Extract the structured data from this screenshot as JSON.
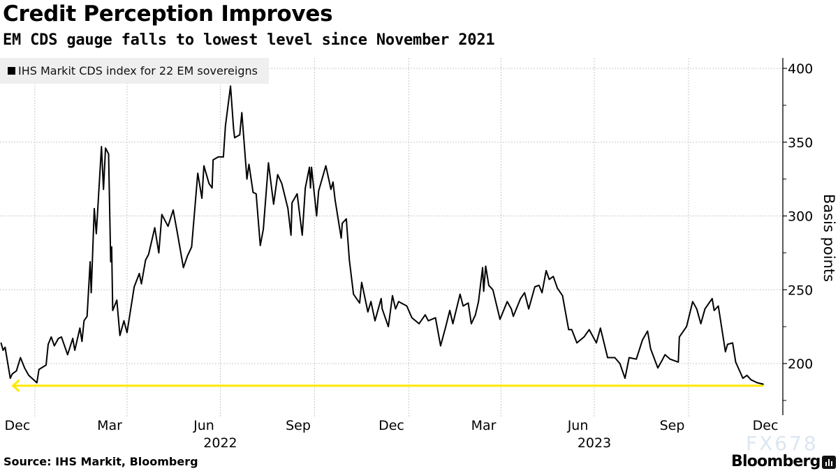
{
  "title": "Credit Perception Improves",
  "subtitle": "EM CDS gauge falls to lowest level since November 2021",
  "source": "Source: IHS Markit, Bloomberg",
  "brand": "Bloomberg",
  "watermark": "FX678",
  "chart_data": {
    "type": "line",
    "title": "Credit Perception Improves",
    "subtitle": "EM CDS gauge falls to lowest level since November 2021",
    "ylabel": "Basis points",
    "xlabel": "",
    "y_axis_position": "right",
    "ylim": [
      172,
      408
    ],
    "xlim": [
      "2021-11-28",
      "2024-01-01"
    ],
    "yticks": [
      200,
      250,
      300,
      350,
      400
    ],
    "ytick_labels": [
      "200",
      "250",
      "300",
      "350",
      "400"
    ],
    "xtick_labels": [
      {
        "label": "Dec",
        "date": "2021-12-15"
      },
      {
        "label": "Mar",
        "date": "2022-03-15"
      },
      {
        "label": "Jun",
        "date": "2022-06-15"
      },
      {
        "label": "Sep",
        "date": "2022-09-15"
      },
      {
        "label": "Dec",
        "date": "2022-12-15"
      },
      {
        "label": "Mar",
        "date": "2023-03-15"
      },
      {
        "label": "Jun",
        "date": "2023-06-15"
      },
      {
        "label": "Sep",
        "date": "2023-09-15"
      },
      {
        "label": "Dec",
        "date": "2023-12-15"
      }
    ],
    "year_labels": [
      {
        "label": "2022",
        "date": "2022-07-01"
      },
      {
        "label": "2023",
        "date": "2023-07-01"
      }
    ],
    "grid": true,
    "legend_position": "top-left",
    "colors": {
      "line": "#000000",
      "reference": "#ffe800",
      "grid": "#c8c8c8"
    },
    "reference_line": {
      "value": 185,
      "from": "2021-12-10",
      "to": "2023-12-13",
      "arrow": "left"
    },
    "series": [
      {
        "name": "IHS Markit CDS index for 22 EM sovereigns",
        "x": [
          "2021-11-29",
          "2021-12-01",
          "2021-12-03",
          "2021-12-08",
          "2021-12-10",
          "2021-12-14",
          "2021-12-18",
          "2021-12-22",
          "2021-12-26",
          "2022-01-03",
          "2022-01-05",
          "2022-01-12",
          "2022-01-14",
          "2022-01-17",
          "2022-01-20",
          "2022-01-24",
          "2022-01-27",
          "2022-02-02",
          "2022-02-07",
          "2022-02-09",
          "2022-02-14",
          "2022-02-16",
          "2022-02-18",
          "2022-02-21",
          "2022-02-24",
          "2022-02-25",
          "2022-02-28",
          "2022-03-02",
          "2022-03-07",
          "2022-03-09",
          "2022-03-11",
          "2022-03-14",
          "2022-03-16",
          "2022-03-17",
          "2022-03-18",
          "2022-03-22",
          "2022-03-25",
          "2022-03-29",
          "2022-04-01",
          "2022-04-08",
          "2022-04-13",
          "2022-04-15",
          "2022-04-19",
          "2022-04-22",
          "2022-04-28",
          "2022-05-02",
          "2022-05-05",
          "2022-05-11",
          "2022-05-16",
          "2022-05-20",
          "2022-05-26",
          "2022-05-30",
          "2022-06-03",
          "2022-06-09",
          "2022-06-13",
          "2022-06-15",
          "2022-06-20",
          "2022-06-23",
          "2022-06-24",
          "2022-06-29",
          "2022-07-04",
          "2022-07-06",
          "2022-07-11",
          "2022-07-14",
          "2022-07-15",
          "2022-07-20",
          "2022-07-22",
          "2022-07-27",
          "2022-07-29",
          "2022-08-02",
          "2022-08-05",
          "2022-08-08",
          "2022-08-09",
          "2022-08-12",
          "2022-08-17",
          "2022-08-22",
          "2022-08-26",
          "2022-08-30",
          "2022-09-05",
          "2022-09-08",
          "2022-09-09",
          "2022-09-14",
          "2022-09-19",
          "2022-09-22",
          "2022-09-26",
          "2022-09-27",
          "2022-09-28",
          "2022-10-03",
          "2022-10-05",
          "2022-10-12",
          "2022-10-17",
          "2022-10-19",
          "2022-10-21",
          "2022-10-27",
          "2022-10-28",
          "2022-11-01",
          "2022-11-04",
          "2022-11-08",
          "2022-11-14",
          "2022-11-16",
          "2022-11-22",
          "2022-11-25",
          "2022-11-29",
          "2022-12-05",
          "2022-12-06",
          "2022-12-12",
          "2022-12-16",
          "2022-12-19",
          "2022-12-22",
          "2022-12-30",
          "2023-01-04",
          "2023-01-11",
          "2023-01-17",
          "2023-01-20",
          "2023-01-27",
          "2023-02-01",
          "2023-02-06",
          "2023-02-10",
          "2023-02-13",
          "2023-02-20",
          "2023-02-23",
          "2023-02-28",
          "2023-03-03",
          "2023-03-07",
          "2023-03-10",
          "2023-03-14",
          "2023-03-15",
          "2023-03-17",
          "2023-03-20",
          "2023-03-24",
          "2023-03-31",
          "2023-04-07",
          "2023-04-11",
          "2023-04-13",
          "2023-04-20",
          "2023-04-24",
          "2023-04-28",
          "2023-05-04",
          "2023-05-08",
          "2023-05-11",
          "2023-05-15",
          "2023-05-18",
          "2023-05-22",
          "2023-05-26",
          "2023-05-31",
          "2023-06-06",
          "2023-06-09",
          "2023-06-14",
          "2023-06-21",
          "2023-06-26",
          "2023-07-03",
          "2023-07-07",
          "2023-07-14",
          "2023-07-21",
          "2023-07-26",
          "2023-07-31",
          "2023-08-04",
          "2023-08-11",
          "2023-08-17",
          "2023-08-22",
          "2023-08-25",
          "2023-09-01",
          "2023-09-05",
          "2023-09-08",
          "2023-09-13",
          "2023-09-21",
          "2023-09-22",
          "2023-09-29",
          "2023-10-05",
          "2023-10-09",
          "2023-10-13",
          "2023-10-17",
          "2023-10-24",
          "2023-10-26",
          "2023-10-30",
          "2023-11-06",
          "2023-11-08",
          "2023-11-13",
          "2023-11-16",
          "2023-11-23",
          "2023-11-27",
          "2023-12-01",
          "2023-12-07",
          "2023-12-13"
        ],
        "values": [
          214,
          209,
          211,
          190,
          193,
          195,
          204,
          197,
          192,
          187,
          196,
          199,
          213,
          218,
          212,
          217,
          218,
          206,
          217,
          209,
          224,
          215,
          229,
          232,
          269,
          248,
          305,
          288,
          347,
          318,
          346,
          342,
          269,
          279,
          236,
          243,
          219,
          229,
          221,
          252,
          261,
          254,
          270,
          274,
          292,
          275,
          301,
          293,
          304,
          289,
          265,
          273,
          279,
          329,
          312,
          334,
          322,
          319,
          338,
          340,
          340,
          361,
          388,
          359,
          353,
          355,
          370,
          325,
          335,
          316,
          315,
          289,
          280,
          291,
          336,
          308,
          328,
          322,
          305,
          287,
          309,
          315,
          287,
          319,
          333,
          319,
          333,
          300,
          317,
          334,
          318,
          323,
          311,
          285,
          295,
          298,
          270,
          247,
          241,
          255,
          235,
          242,
          229,
          244,
          237,
          225,
          246,
          237,
          242,
          239,
          231,
          227,
          233,
          229,
          231,
          212,
          225,
          236,
          227,
          247,
          239,
          241,
          227,
          233,
          242,
          265,
          249,
          266,
          253,
          250,
          230,
          242,
          237,
          232,
          244,
          248,
          237,
          252,
          253,
          248,
          263,
          257,
          259,
          251,
          246,
          223,
          223,
          214,
          218,
          223,
          214,
          224,
          204,
          204,
          200,
          190,
          204,
          203,
          216,
          222,
          210,
          197,
          202,
          206,
          203,
          201,
          218,
          225,
          242,
          237,
          227,
          237,
          244,
          236,
          239,
          208,
          213,
          214,
          201,
          190,
          192,
          189,
          187,
          186
        ]
      }
    ]
  }
}
